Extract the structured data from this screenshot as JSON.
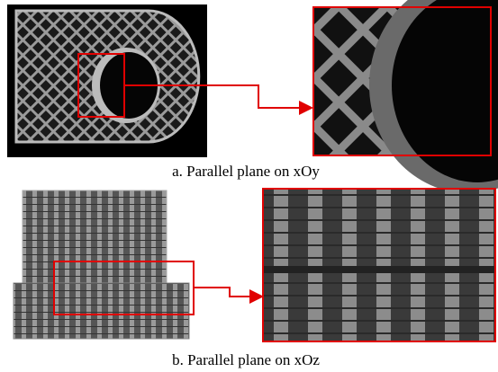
{
  "captions": {
    "a": "a. Parallel plane on xOy",
    "b": "b. Parallel plane on xOz"
  }
}
